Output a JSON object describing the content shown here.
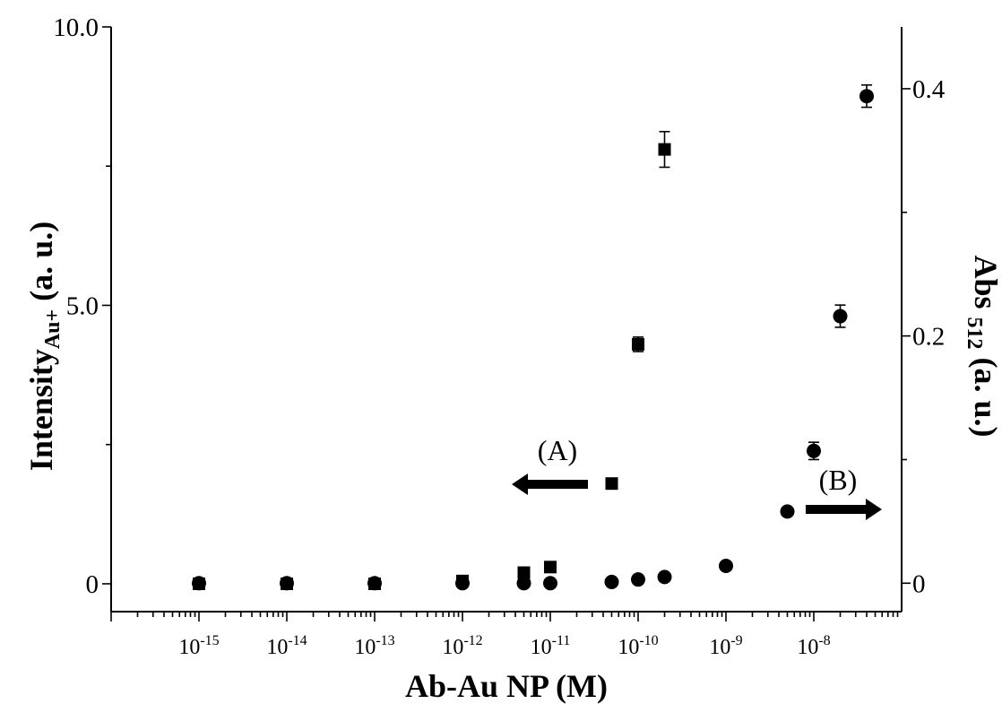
{
  "chart_data": {
    "type": "scatter",
    "xlabel": "Ab-Au NP (M)",
    "x_scale": "log",
    "x_range": [
      1e-16,
      1e-07
    ],
    "x_ticks": [
      {
        "base": "10",
        "exp": "-15",
        "value": 1e-15
      },
      {
        "base": "10",
        "exp": "-14",
        "value": 1e-14
      },
      {
        "base": "10",
        "exp": "-13",
        "value": 1e-13
      },
      {
        "base": "10",
        "exp": "-12",
        "value": 1e-12
      },
      {
        "base": "10",
        "exp": "-11",
        "value": 1e-11
      },
      {
        "base": "10",
        "exp": "-10",
        "value": 1e-10
      },
      {
        "base": "10",
        "exp": "-9",
        "value": 1e-09
      },
      {
        "base": "10",
        "exp": "-8",
        "value": 1e-08
      }
    ],
    "y_left": {
      "label_main": "Intensity",
      "label_sub": "Au+",
      "label_tail": " (a. u.)",
      "range": [
        -0.5,
        10
      ],
      "ticks": [
        0,
        5,
        10
      ],
      "tick_labels": [
        "0",
        "5.0",
        "10.0"
      ]
    },
    "y_right": {
      "label_main": "Abs ",
      "label_sub": "512",
      "label_tail": " (a. u.)",
      "range": [
        -0.023,
        0.45
      ],
      "ticks": [
        0,
        0.2,
        0.4
      ],
      "tick_labels": [
        "0",
        "0.2",
        "0.4"
      ]
    },
    "series": [
      {
        "marker": "square",
        "axis": "left",
        "points": [
          {
            "x": 1e-15,
            "y": 0.0,
            "err": 0
          },
          {
            "x": 1e-14,
            "y": 0.0,
            "err": 0
          },
          {
            "x": 1e-13,
            "y": 0.0,
            "err": 0
          },
          {
            "x": 1e-12,
            "y": 0.05,
            "err": 0
          },
          {
            "x": 5e-12,
            "y": 0.2,
            "err": 0
          },
          {
            "x": 1e-11,
            "y": 0.3,
            "err": 0
          },
          {
            "x": 5e-11,
            "y": 1.8,
            "err": 0
          },
          {
            "x": 1e-10,
            "y": 4.3,
            "err": 0.13
          },
          {
            "x": 2e-10,
            "y": 7.8,
            "err": 0.32
          }
        ]
      },
      {
        "marker": "circle",
        "axis": "right",
        "points": [
          {
            "x": 1e-15,
            "y": 0.0,
            "err": 0
          },
          {
            "x": 1e-14,
            "y": 0.0,
            "err": 0
          },
          {
            "x": 1e-13,
            "y": 0.0,
            "err": 0
          },
          {
            "x": 1e-12,
            "y": 0.0,
            "err": 0
          },
          {
            "x": 5e-12,
            "y": 0.0,
            "err": 0
          },
          {
            "x": 1e-11,
            "y": 0.0,
            "err": 0
          },
          {
            "x": 5e-11,
            "y": 0.001,
            "err": 0
          },
          {
            "x": 1e-10,
            "y": 0.003,
            "err": 0
          },
          {
            "x": 2e-10,
            "y": 0.005,
            "err": 0
          },
          {
            "x": 1e-09,
            "y": 0.014,
            "err": 0
          },
          {
            "x": 5e-09,
            "y": 0.058,
            "err": 0
          },
          {
            "x": 1e-08,
            "y": 0.107,
            "err": 0.007
          },
          {
            "x": 2e-08,
            "y": 0.216,
            "err": 0.009
          },
          {
            "x": 4e-08,
            "y": 0.394,
            "err": 0.009
          }
        ]
      }
    ],
    "annotations": [
      {
        "text": "(A)",
        "arrow": "left",
        "series": "square"
      },
      {
        "text": "(B)",
        "arrow": "right",
        "series": "circle"
      }
    ],
    "grid": false
  }
}
